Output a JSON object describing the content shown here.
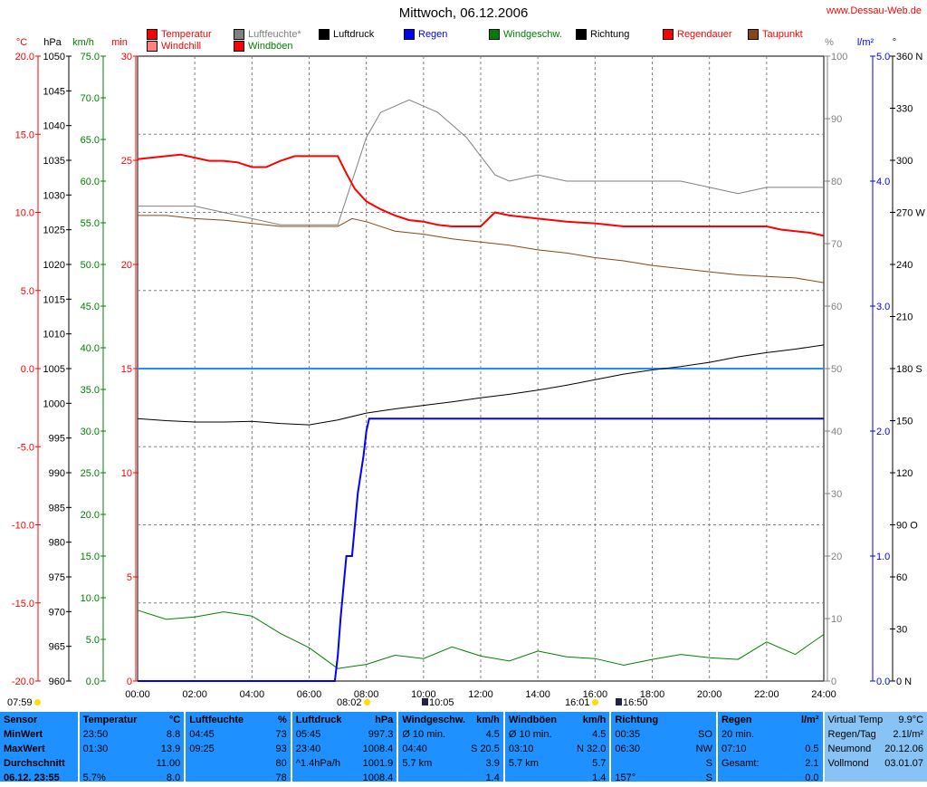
{
  "title": "Mittwoch, 06.12.2006",
  "site": "www.Dessau-Web.de",
  "legend": [
    {
      "label": "Temperatur",
      "color": "#ff0000",
      "text_color": "#ff0000"
    },
    {
      "label": "Luftfeuchte*",
      "color": "#808080",
      "text_color": "#808080"
    },
    {
      "label": "Luftdruck",
      "color": "#000000",
      "text_color": "#000000"
    },
    {
      "label": "Regen",
      "color": "#0000ff",
      "text_color": "#0000ff"
    },
    {
      "label": "Windgeschw.",
      "color": "#008000",
      "text_color": "#008000"
    },
    {
      "label": "Richtung",
      "color": "#000000",
      "text_color": "#000000"
    },
    {
      "label": "Regendauer",
      "color": "#ff0000",
      "text_color": "#ff0000"
    },
    {
      "label": "Taupunkt",
      "color": "#8b4513",
      "text_color": "#ff0000"
    },
    {
      "label": "Windchill",
      "color": "#ff8080",
      "text_color": "#ff0000"
    },
    {
      "label": "Windböen",
      "color": "#ff0000",
      "text_color": "#008000"
    }
  ],
  "chart_data": {
    "type": "line",
    "x": [
      "00:00",
      "02:00",
      "04:00",
      "06:00",
      "08:00",
      "10:00",
      "12:00",
      "14:00",
      "16:00",
      "18:00",
      "20:00",
      "22:00",
      "24:00"
    ],
    "xlim": [
      0,
      24
    ],
    "axes": [
      {
        "unit": "°C",
        "ticks": [
          "20.0",
          "15.0",
          "10.0",
          "5.0",
          "0.0",
          "-5.0",
          "-10.0",
          "-15.0",
          "-20.0"
        ],
        "color": "#ff0000"
      },
      {
        "unit": "hPa",
        "ticks": [
          "1050",
          "1045",
          "1040",
          "1035",
          "1030",
          "1025",
          "1020",
          "1015",
          "1010",
          "1005",
          "1000",
          "995",
          "990",
          "985",
          "980",
          "975",
          "970",
          "965",
          "960"
        ],
        "color": "#000000"
      },
      {
        "unit": "km/h",
        "ticks": [
          "75.0",
          "70.0",
          "65.0",
          "60.0",
          "55.0",
          "50.0",
          "45.0",
          "40.0",
          "35.0",
          "30.0",
          "25.0",
          "20.0",
          "15.0",
          "10.0",
          "5.0",
          "0.0"
        ],
        "color": "#008000"
      },
      {
        "unit": "min",
        "ticks": [
          "30",
          "25",
          "20",
          "15",
          "10",
          "5",
          "0"
        ],
        "color": "#ff0000"
      },
      {
        "unit": "%",
        "ticks": [
          "100",
          "90",
          "80",
          "70",
          "60",
          "50",
          "40",
          "30",
          "20",
          "10",
          "0"
        ],
        "color": "#808080"
      },
      {
        "unit": "l/m²",
        "ticks": [
          "5.0",
          "4.0",
          "3.0",
          "2.0",
          "1.0",
          "0.0"
        ],
        "color": "#0000ff"
      },
      {
        "unit": "°",
        "ticks": [
          "360 N",
          "330",
          "300",
          "270 W",
          "240",
          "210",
          "180 S",
          "150",
          "120",
          "90 O",
          "60",
          "30",
          "0 N"
        ],
        "color": "#000000"
      }
    ],
    "series": [
      {
        "name": "Temperatur",
        "unit": "°C",
        "color": "#ff0000",
        "x": [
          0,
          1,
          1.5,
          2,
          2.5,
          3,
          3.5,
          4,
          4.5,
          5,
          5.5,
          6,
          6.5,
          7,
          7.3,
          7.6,
          8,
          8.5,
          9,
          9.5,
          10,
          10.5,
          11,
          11.5,
          12,
          12.5,
          13,
          14,
          15,
          16,
          17,
          18,
          19,
          20,
          21,
          22,
          22.5,
          23,
          23.5,
          24
        ],
        "y": [
          13.4,
          13.6,
          13.7,
          13.5,
          13.3,
          13.3,
          13.2,
          12.9,
          12.9,
          13.3,
          13.6,
          13.6,
          13.6,
          13.6,
          12.5,
          11.5,
          10.7,
          10.2,
          9.8,
          9.5,
          9.4,
          9.2,
          9.1,
          9.1,
          9.1,
          10.0,
          9.8,
          9.6,
          9.4,
          9.3,
          9.1,
          9.1,
          9.1,
          9.1,
          9.1,
          9.1,
          8.9,
          8.8,
          8.7,
          8.5
        ]
      },
      {
        "name": "Luftfeuchte*",
        "unit": "%",
        "color": "#808080",
        "x": [
          0,
          1,
          2,
          3,
          4,
          5,
          6,
          7,
          7.5,
          8,
          8.5,
          9,
          9.5,
          10,
          10.5,
          11,
          11.5,
          12,
          12.5,
          13,
          14,
          15,
          16,
          17,
          18,
          19,
          20,
          21,
          22,
          23,
          24
        ],
        "y": [
          76,
          76,
          76,
          75,
          74,
          73,
          73,
          73,
          80,
          87,
          91,
          92,
          93,
          92,
          91,
          89,
          87,
          84,
          81,
          80,
          81,
          80,
          80,
          80,
          80,
          80,
          79,
          78,
          79,
          79,
          79
        ]
      },
      {
        "name": "Luftdruck",
        "unit": "hPa",
        "color": "#000000",
        "x": [
          0,
          1,
          2,
          3,
          4,
          5,
          6,
          7,
          8,
          9,
          10,
          11,
          12,
          13,
          14,
          15,
          16,
          17,
          18,
          19,
          20,
          21,
          22,
          23,
          24
        ],
        "y": [
          997.8,
          997.5,
          997.3,
          997.3,
          997.4,
          997.1,
          996.9,
          997.6,
          998.6,
          999.2,
          999.7,
          1000.2,
          1000.8,
          1001.3,
          1001.9,
          1002.6,
          1003.4,
          1004.2,
          1004.8,
          1005.3,
          1005.9,
          1006.7,
          1007.3,
          1007.8,
          1008.4
        ]
      },
      {
        "name": "Regen",
        "unit": "l/m²",
        "color": "#0000ff",
        "x": [
          0,
          6.9,
          7,
          7.1,
          7.3,
          7.5,
          7.7,
          7.9,
          8,
          8.1,
          24
        ],
        "y": [
          0,
          0,
          0.2,
          0.5,
          1.0,
          1.0,
          1.5,
          1.8,
          2.0,
          2.1,
          2.1
        ]
      },
      {
        "name": "Taupunkt",
        "unit": "°C",
        "color": "#8b4513",
        "x": [
          0,
          1,
          2,
          3,
          4,
          5,
          6,
          7,
          7.5,
          8,
          9,
          10,
          11,
          12,
          13,
          14,
          15,
          16,
          17,
          18,
          19,
          20,
          21,
          22,
          23,
          24
        ],
        "y": [
          9.8,
          9.8,
          9.6,
          9.5,
          9.3,
          9.1,
          9.1,
          9.1,
          9.6,
          9.4,
          8.8,
          8.6,
          8.3,
          8.1,
          7.9,
          7.6,
          7.4,
          7.1,
          6.9,
          6.6,
          6.4,
          6.2,
          6.0,
          5.9,
          5.8,
          5.5
        ]
      },
      {
        "name": "Windgeschw.",
        "unit": "km/h",
        "color": "#008000",
        "x": [
          0,
          1,
          2,
          3,
          4,
          5,
          6,
          7,
          8,
          9,
          10,
          11,
          12,
          13,
          14,
          15,
          16,
          17,
          18,
          19,
          20,
          21,
          22,
          23,
          24
        ],
        "y": [
          8.5,
          7.4,
          7.7,
          8.3,
          7.8,
          5.7,
          4.0,
          1.5,
          2.0,
          3.1,
          2.7,
          4.1,
          3.0,
          2.4,
          3.6,
          2.9,
          2.7,
          1.9,
          2.6,
          3.2,
          2.8,
          2.6,
          4.7,
          3.2,
          5.6
        ]
      }
    ],
    "wind_direction_level": [
      {
        "label": "180 S",
        "value": 180
      }
    ]
  },
  "events": [
    {
      "text": "07:59",
      "icon": "sun"
    },
    {
      "text": "08:02",
      "icon": "sun"
    },
    {
      "text": "10:05",
      "icon": "moon"
    },
    {
      "text": "16:01",
      "icon": "sun"
    },
    {
      "text": "16:50",
      "icon": "moon"
    }
  ],
  "stats": {
    "sensor": {
      "title": "Sensor",
      "rows": [
        "MinWert",
        "MaxWert",
        "Durchschnitt",
        "06.12. 23:55"
      ]
    },
    "temp": {
      "title": "Temperatur",
      "unit": "°C",
      "rows": [
        [
          "23:50",
          "8.8"
        ],
        [
          "01:30",
          "13.9"
        ],
        [
          "",
          "11.00"
        ],
        [
          "5.7%",
          "8.0"
        ]
      ]
    },
    "hum": {
      "title": "Luftfeuchte",
      "unit": "%",
      "rows": [
        [
          "04:45",
          "73"
        ],
        [
          "09:25",
          "93"
        ],
        [
          "",
          "80"
        ],
        [
          "",
          "78"
        ]
      ]
    },
    "pres": {
      "title": "Luftdruck",
      "unit": "hPa",
      "rows": [
        [
          "05:45",
          "997.3"
        ],
        [
          "23:40",
          "1008.4"
        ],
        [
          "^1.4hPa/h",
          "1001.9"
        ],
        [
          "",
          "1008.4"
        ]
      ]
    },
    "wind": {
      "title": "Windgeschw.",
      "unit": "km/h",
      "rows": [
        [
          "Ø 10 min.",
          "4.5"
        ],
        [
          "04:40",
          "S 20.5"
        ],
        [
          "5.7 km",
          "3.9"
        ],
        [
          "",
          "1.4"
        ]
      ]
    },
    "gust": {
      "title": "Windböen",
      "unit": "km/h",
      "rows": [
        [
          "Ø 10 min.",
          "4.5"
        ],
        [
          "03:10",
          "N 32.0"
        ],
        [
          "5.7 km",
          "5.7"
        ],
        [
          "",
          "1.4"
        ]
      ]
    },
    "dir": {
      "title": "Richtung",
      "unit": "",
      "rows": [
        [
          "00:35",
          "SO"
        ],
        [
          "06:30",
          "NW"
        ],
        [
          "",
          "S"
        ],
        [
          "157°",
          "S"
        ]
      ]
    },
    "rain": {
      "title": "Regen",
      "unit": "l/m²",
      "rows": [
        [
          "20 min.",
          ""
        ],
        [
          "07:10",
          "0.5"
        ],
        [
          "Gesamt:",
          "2.1"
        ],
        [
          "",
          "0.0"
        ]
      ]
    },
    "info": {
      "rows": [
        [
          "Virtual Temp",
          "9.9°C"
        ],
        [
          "Regen/Tag",
          "2.1l/m²"
        ],
        [
          "Neumond",
          "20.12.06"
        ],
        [
          "Vollmond",
          "03.01.07"
        ]
      ]
    }
  }
}
